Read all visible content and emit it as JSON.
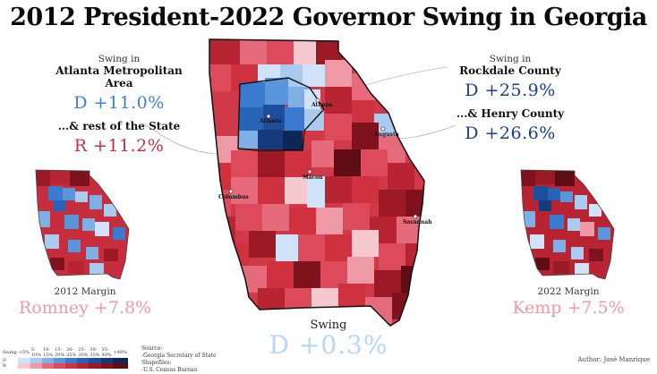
{
  "title": "2012 President-2022 Governor Swing in Georgia",
  "left_panel": {
    "label": "Swing in",
    "region": "Atlanta Metropolitan Area",
    "value": "D +11.0%",
    "rest_label": "...& rest of the State",
    "rest_value": "R +11.2%"
  },
  "right_panel": {
    "label": "Swing in",
    "region": "Rockdale County",
    "value": "D +25.9%",
    "second_label": "...& Henry County",
    "second_value": "D +26.6%"
  },
  "left_map": {
    "caption": "2012 Margin",
    "value": "Romney +7.8%"
  },
  "right_map": {
    "caption": "2022 Margin",
    "value": "Kemp +7.5%"
  },
  "center_map": {
    "caption": "Swing",
    "value": "D +0.3%"
  },
  "cities": [
    "Atlanta",
    "Athens",
    "Augusta",
    "Macon",
    "Columbus",
    "Savannah"
  ],
  "legend": {
    "header": "Swing",
    "bins": [
      "<5%",
      "5-10%",
      "10-15%",
      "15-20%",
      "20-25%",
      "25-30%",
      "30-35%",
      "35-40%",
      ">40%"
    ],
    "rows": [
      "D",
      "R"
    ],
    "blue_colors": [
      "#cfe2f7",
      "#a9cbef",
      "#7eb0e6",
      "#5a96dc",
      "#3a7bd0",
      "#2763b6",
      "#1d4e9c",
      "#15397a",
      "#0d2758"
    ],
    "red_colors": [
      "#f6c9cf",
      "#ee9aa6",
      "#e56a7c",
      "#dc4a5c",
      "#d0313f",
      "#b82431",
      "#9c1a26",
      "#7e131d",
      "#5e0d14"
    ]
  },
  "sources": {
    "label": "Source:",
    "lines": [
      "-Georgia Secretary of State",
      "Shapefiles:",
      "-U.S. Census Bureau"
    ]
  },
  "author": "Author: José Manrique"
}
